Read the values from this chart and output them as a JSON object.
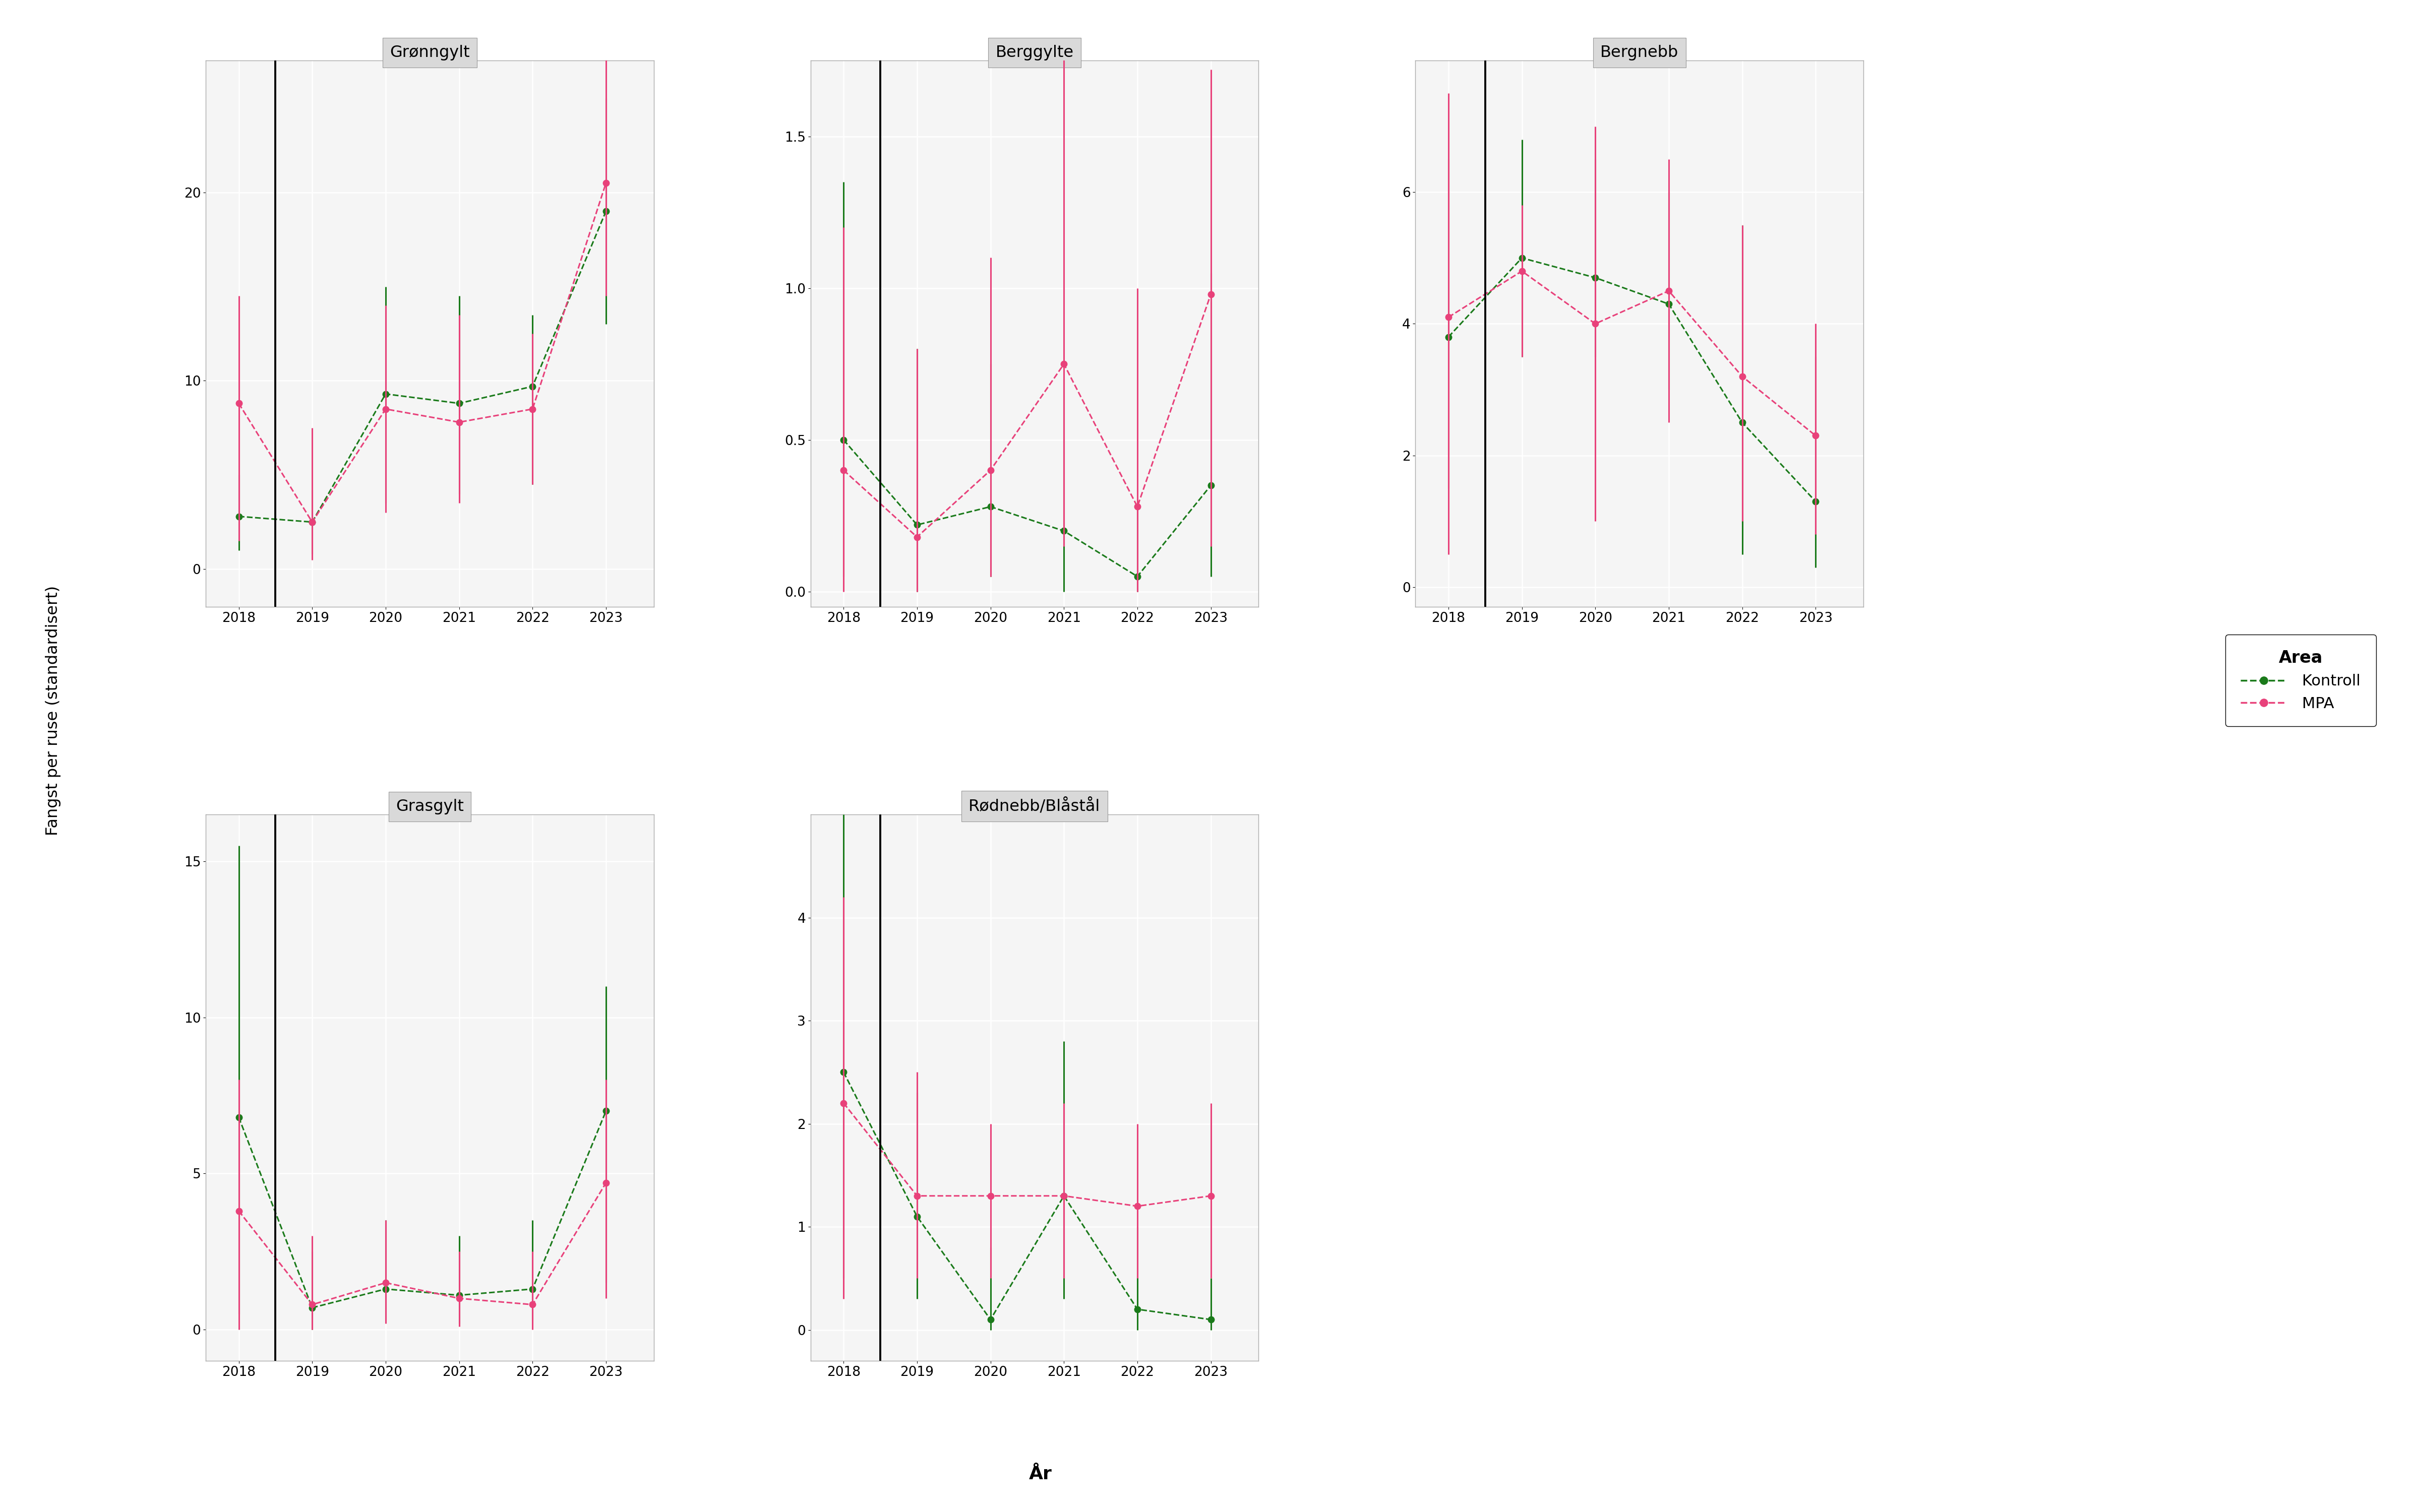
{
  "panels": [
    {
      "title": "Grønngylt",
      "row": 0,
      "col": 0,
      "vline_x": 2018.5,
      "ylim": [
        -2,
        27
      ],
      "yticks": [
        0,
        10,
        20
      ],
      "kontroll": {
        "x": [
          2018,
          2019,
          2020,
          2021,
          2022,
          2023
        ],
        "y": [
          2.8,
          2.5,
          9.3,
          8.8,
          9.7,
          19.0
        ],
        "ylo": [
          1.0,
          0.8,
          3.5,
          4.0,
          4.5,
          13.0
        ],
        "yhi": [
          5.0,
          4.2,
          15.0,
          14.5,
          13.5,
          25.0
        ]
      },
      "mpa": {
        "x": [
          2018,
          2019,
          2020,
          2021,
          2022,
          2023
        ],
        "y": [
          8.8,
          2.5,
          8.5,
          7.8,
          8.5,
          20.5
        ],
        "ylo": [
          1.5,
          0.5,
          3.0,
          3.5,
          4.5,
          14.5
        ],
        "yhi": [
          14.5,
          7.5,
          14.0,
          13.5,
          12.5,
          27.5
        ]
      }
    },
    {
      "title": "Berggylte",
      "row": 0,
      "col": 1,
      "vline_x": 2018.5,
      "ylim": [
        -0.05,
        1.75
      ],
      "yticks": [
        0.0,
        0.5,
        1.0,
        1.5
      ],
      "kontroll": {
        "x": [
          2018,
          2019,
          2020,
          2021,
          2022,
          2023
        ],
        "y": [
          0.5,
          0.22,
          0.28,
          0.2,
          0.05,
          0.35
        ],
        "ylo": [
          0.05,
          0.0,
          0.05,
          0.0,
          0.0,
          0.05
        ],
        "yhi": [
          1.35,
          0.8,
          0.75,
          0.7,
          0.3,
          1.05
        ]
      },
      "mpa": {
        "x": [
          2018,
          2019,
          2020,
          2021,
          2022,
          2023
        ],
        "y": [
          0.4,
          0.18,
          0.4,
          0.75,
          0.28,
          0.98
        ],
        "ylo": [
          0.0,
          0.0,
          0.05,
          0.15,
          0.0,
          0.15
        ],
        "yhi": [
          1.2,
          0.8,
          1.1,
          5.1,
          1.0,
          1.72
        ]
      }
    },
    {
      "title": "Bergnebb",
      "row": 0,
      "col": 2,
      "vline_x": 2018.5,
      "ylim": [
        -0.3,
        8.0
      ],
      "yticks": [
        0,
        2,
        4,
        6
      ],
      "kontroll": {
        "x": [
          2018,
          2019,
          2020,
          2021,
          2022,
          2023
        ],
        "y": [
          3.8,
          5.0,
          4.7,
          4.3,
          2.5,
          1.3
        ],
        "ylo": [
          1.5,
          3.5,
          3.5,
          3.0,
          0.5,
          0.3
        ],
        "yhi": [
          6.5,
          6.8,
          6.5,
          6.0,
          5.5,
          3.5
        ]
      },
      "mpa": {
        "x": [
          2018,
          2019,
          2020,
          2021,
          2022,
          2023
        ],
        "y": [
          4.1,
          4.8,
          4.0,
          4.5,
          3.2,
          2.3
        ],
        "ylo": [
          0.5,
          3.5,
          1.0,
          2.5,
          1.0,
          0.8
        ],
        "yhi": [
          7.5,
          5.8,
          7.0,
          6.5,
          5.5,
          4.0
        ]
      }
    },
    {
      "title": "Grasgylt",
      "row": 1,
      "col": 0,
      "vline_x": 2018.5,
      "ylim": [
        -1.0,
        16.5
      ],
      "yticks": [
        0,
        5,
        10,
        15
      ],
      "kontroll": {
        "x": [
          2018,
          2019,
          2020,
          2021,
          2022,
          2023
        ],
        "y": [
          6.8,
          0.7,
          1.3,
          1.1,
          1.3,
          7.0
        ],
        "ylo": [
          0.5,
          0.0,
          0.3,
          0.2,
          0.3,
          1.5
        ],
        "yhi": [
          15.5,
          2.5,
          3.5,
          3.0,
          3.5,
          11.0
        ]
      },
      "mpa": {
        "x": [
          2018,
          2019,
          2020,
          2021,
          2022,
          2023
        ],
        "y": [
          3.8,
          0.8,
          1.5,
          1.0,
          0.8,
          4.7
        ],
        "ylo": [
          0.0,
          0.0,
          0.2,
          0.1,
          0.0,
          1.0
        ],
        "yhi": [
          8.0,
          3.0,
          3.5,
          2.5,
          2.5,
          8.0
        ]
      }
    },
    {
      "title": "Rødnebb/Blåstål",
      "row": 1,
      "col": 1,
      "vline_x": 2018.5,
      "ylim": [
        -0.3,
        5.0
      ],
      "yticks": [
        0,
        1,
        2,
        3,
        4
      ],
      "kontroll": {
        "x": [
          2018,
          2019,
          2020,
          2021,
          2022,
          2023
        ],
        "y": [
          2.5,
          1.1,
          0.1,
          1.3,
          0.2,
          0.1
        ],
        "ylo": [
          0.5,
          0.3,
          0.0,
          0.3,
          0.0,
          0.0
        ],
        "yhi": [
          5.0,
          2.3,
          0.8,
          2.8,
          1.0,
          0.5
        ]
      },
      "mpa": {
        "x": [
          2018,
          2019,
          2020,
          2021,
          2022,
          2023
        ],
        "y": [
          2.2,
          1.3,
          1.3,
          1.3,
          1.2,
          1.3
        ],
        "ylo": [
          0.3,
          0.5,
          0.5,
          0.5,
          0.5,
          0.5
        ],
        "yhi": [
          4.2,
          2.5,
          2.0,
          2.2,
          2.0,
          2.2
        ]
      }
    }
  ],
  "kontroll_color": "#1a7a1a",
  "mpa_color": "#e8417a",
  "years": [
    2018,
    2019,
    2020,
    2021,
    2022,
    2023
  ],
  "ylabel": "Fangst per ruse (standardisert)",
  "xlabel": "År",
  "legend_title": "Area",
  "fig_bg": "#ffffff",
  "panel_bg": "#f5f5f5",
  "grid_color": "#ffffff",
  "title_bg": "#d9d9d9"
}
